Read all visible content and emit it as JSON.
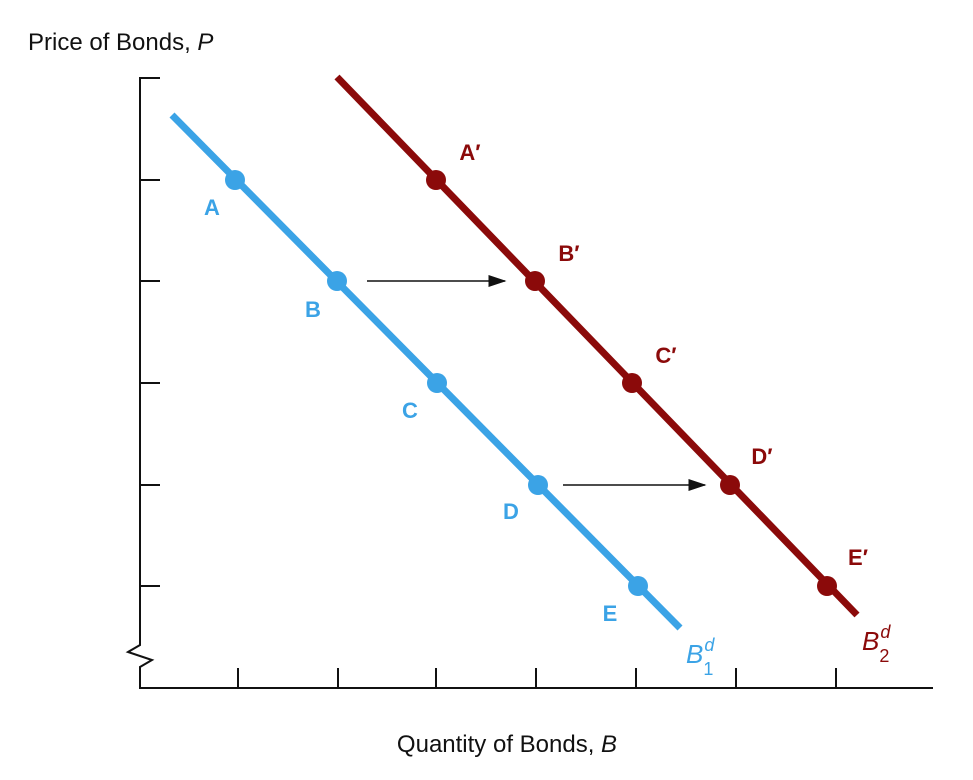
{
  "y_axis": {
    "label": "Price of Bonds, ",
    "variable": "P"
  },
  "x_axis": {
    "label": "Quantity of Bonds, ",
    "variable": "B"
  },
  "curves": [
    {
      "name": "B",
      "superscript": "d",
      "subscript": "1",
      "points": [
        "A",
        "B",
        "C",
        "D",
        "E"
      ]
    },
    {
      "name": "B",
      "superscript": "d",
      "subscript": "2",
      "points": [
        "A′",
        "B′",
        "C′",
        "D′",
        "E′"
      ]
    }
  ]
}
